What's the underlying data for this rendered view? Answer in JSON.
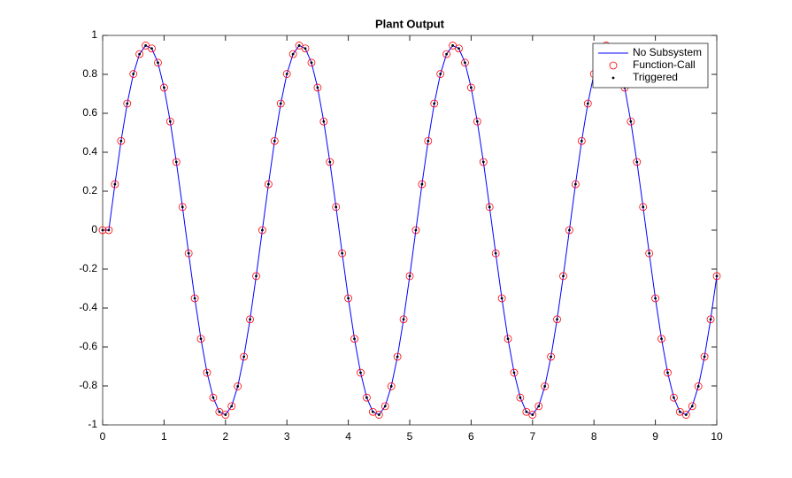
{
  "chart_data": {
    "type": "line",
    "title": "Plant Output",
    "x": [
      0,
      0.1,
      0.2,
      0.3,
      0.4,
      0.5,
      0.6,
      0.7,
      0.8,
      0.9,
      1,
      1.1,
      1.2,
      1.3,
      1.4,
      1.5,
      1.6,
      1.7,
      1.8,
      1.9,
      2,
      2.1,
      2.2,
      2.3,
      2.4,
      2.5,
      2.6,
      2.7,
      2.8,
      2.9,
      3,
      3.1,
      3.2,
      3.3,
      3.4,
      3.5,
      3.6,
      3.7,
      3.8,
      3.9,
      4,
      4.1,
      4.2,
      4.3,
      4.4,
      4.5,
      4.6,
      4.7,
      4.8,
      4.9,
      5,
      5.1,
      5.2,
      5.3,
      5.4,
      5.5,
      5.6,
      5.7,
      5.8,
      5.9,
      6,
      6.1,
      6.2,
      6.3,
      6.4,
      6.5,
      6.6,
      6.7,
      6.8,
      6.9,
      7,
      7.1,
      7.2,
      7.3,
      7.4,
      7.5,
      7.6,
      7.7,
      7.8,
      7.9,
      8,
      8.1,
      8.2,
      8.3,
      8.4,
      8.5,
      8.6,
      8.7,
      8.8,
      8.9,
      9,
      9.1,
      9.2,
      9.3,
      9.4,
      9.5,
      9.6,
      9.7,
      9.8,
      9.9,
      10
    ],
    "series": [
      {
        "name": "No Subsystem",
        "color": "#0000ff",
        "marker": "none",
        "line": true,
        "values": [
          0,
          0,
          0.236,
          0.458,
          0.65,
          0.802,
          0.904,
          0.948,
          0.933,
          0.86,
          0.732,
          0.558,
          0.35,
          0.119,
          -0.119,
          -0.35,
          -0.558,
          -0.732,
          -0.86,
          -0.933,
          -0.948,
          -0.904,
          -0.802,
          -0.65,
          -0.458,
          -0.236,
          0,
          0.236,
          0.458,
          0.65,
          0.802,
          0.904,
          0.948,
          0.933,
          0.86,
          0.732,
          0.558,
          0.35,
          0.119,
          -0.119,
          -0.35,
          -0.558,
          -0.732,
          -0.86,
          -0.933,
          -0.948,
          -0.904,
          -0.802,
          -0.65,
          -0.458,
          -0.236,
          0,
          0.236,
          0.458,
          0.65,
          0.802,
          0.904,
          0.948,
          0.933,
          0.86,
          0.732,
          0.558,
          0.35,
          0.119,
          -0.119,
          -0.35,
          -0.558,
          -0.732,
          -0.86,
          -0.933,
          -0.948,
          -0.904,
          -0.802,
          -0.65,
          -0.458,
          -0.236,
          0,
          0.236,
          0.458,
          0.65,
          0.802,
          0.904,
          0.948,
          0.933,
          0.86,
          0.732,
          0.558,
          0.35,
          0.119,
          -0.119,
          -0.35,
          -0.558,
          -0.732,
          -0.86,
          -0.933,
          -0.948,
          -0.904,
          -0.802,
          -0.65,
          -0.458,
          -0.236
        ]
      },
      {
        "name": "Function-Call",
        "color": "#ff0000",
        "marker": "circle",
        "line": false,
        "values": [
          0,
          0,
          0.236,
          0.458,
          0.65,
          0.802,
          0.904,
          0.948,
          0.933,
          0.86,
          0.732,
          0.558,
          0.35,
          0.119,
          -0.119,
          -0.35,
          -0.558,
          -0.732,
          -0.86,
          -0.933,
          -0.948,
          -0.904,
          -0.802,
          -0.65,
          -0.458,
          -0.236,
          0,
          0.236,
          0.458,
          0.65,
          0.802,
          0.904,
          0.948,
          0.933,
          0.86,
          0.732,
          0.558,
          0.35,
          0.119,
          -0.119,
          -0.35,
          -0.558,
          -0.732,
          -0.86,
          -0.933,
          -0.948,
          -0.904,
          -0.802,
          -0.65,
          -0.458,
          -0.236,
          0,
          0.236,
          0.458,
          0.65,
          0.802,
          0.904,
          0.948,
          0.933,
          0.86,
          0.732,
          0.558,
          0.35,
          0.119,
          -0.119,
          -0.35,
          -0.558,
          -0.732,
          -0.86,
          -0.933,
          -0.948,
          -0.904,
          -0.802,
          -0.65,
          -0.458,
          -0.236,
          0,
          0.236,
          0.458,
          0.65,
          0.802,
          0.904,
          0.948,
          0.933,
          0.86,
          0.732,
          0.558,
          0.35,
          0.119,
          -0.119,
          -0.35,
          -0.558,
          -0.732,
          -0.86,
          -0.933,
          -0.948,
          -0.904,
          -0.802,
          -0.65,
          -0.458,
          -0.236
        ]
      },
      {
        "name": "Triggered",
        "color": "#000000",
        "marker": "dot",
        "line": false,
        "values": [
          0,
          0,
          0.236,
          0.458,
          0.65,
          0.802,
          0.904,
          0.948,
          0.933,
          0.86,
          0.732,
          0.558,
          0.35,
          0.119,
          -0.119,
          -0.35,
          -0.558,
          -0.732,
          -0.86,
          -0.933,
          -0.948,
          -0.904,
          -0.802,
          -0.65,
          -0.458,
          -0.236,
          0,
          0.236,
          0.458,
          0.65,
          0.802,
          0.904,
          0.948,
          0.933,
          0.86,
          0.732,
          0.558,
          0.35,
          0.119,
          -0.119,
          -0.35,
          -0.558,
          -0.732,
          -0.86,
          -0.933,
          -0.948,
          -0.904,
          -0.802,
          -0.65,
          -0.458,
          -0.236,
          0,
          0.236,
          0.458,
          0.65,
          0.802,
          0.904,
          0.948,
          0.933,
          0.86,
          0.732,
          0.558,
          0.35,
          0.119,
          -0.119,
          -0.35,
          -0.558,
          -0.732,
          -0.86,
          -0.933,
          -0.948,
          -0.904,
          -0.802,
          -0.65,
          -0.458,
          -0.236,
          0,
          0.236,
          0.458,
          0.65,
          0.802,
          0.904,
          0.948,
          0.933,
          0.86,
          0.732,
          0.558,
          0.35,
          0.119,
          -0.119,
          -0.35,
          -0.558,
          -0.732,
          -0.86,
          -0.933,
          -0.948,
          -0.904,
          -0.802,
          -0.65,
          -0.458,
          -0.236
        ]
      }
    ],
    "xlim": [
      0,
      10
    ],
    "xticks": [
      0,
      1,
      2,
      3,
      4,
      5,
      6,
      7,
      8,
      9,
      10
    ],
    "ylim": [
      -1,
      1
    ],
    "yticks": [
      -1,
      -0.8,
      -0.6,
      -0.4,
      -0.2,
      0,
      0.2,
      0.4,
      0.6,
      0.8,
      1
    ],
    "grid": false,
    "legend": "upper right"
  }
}
